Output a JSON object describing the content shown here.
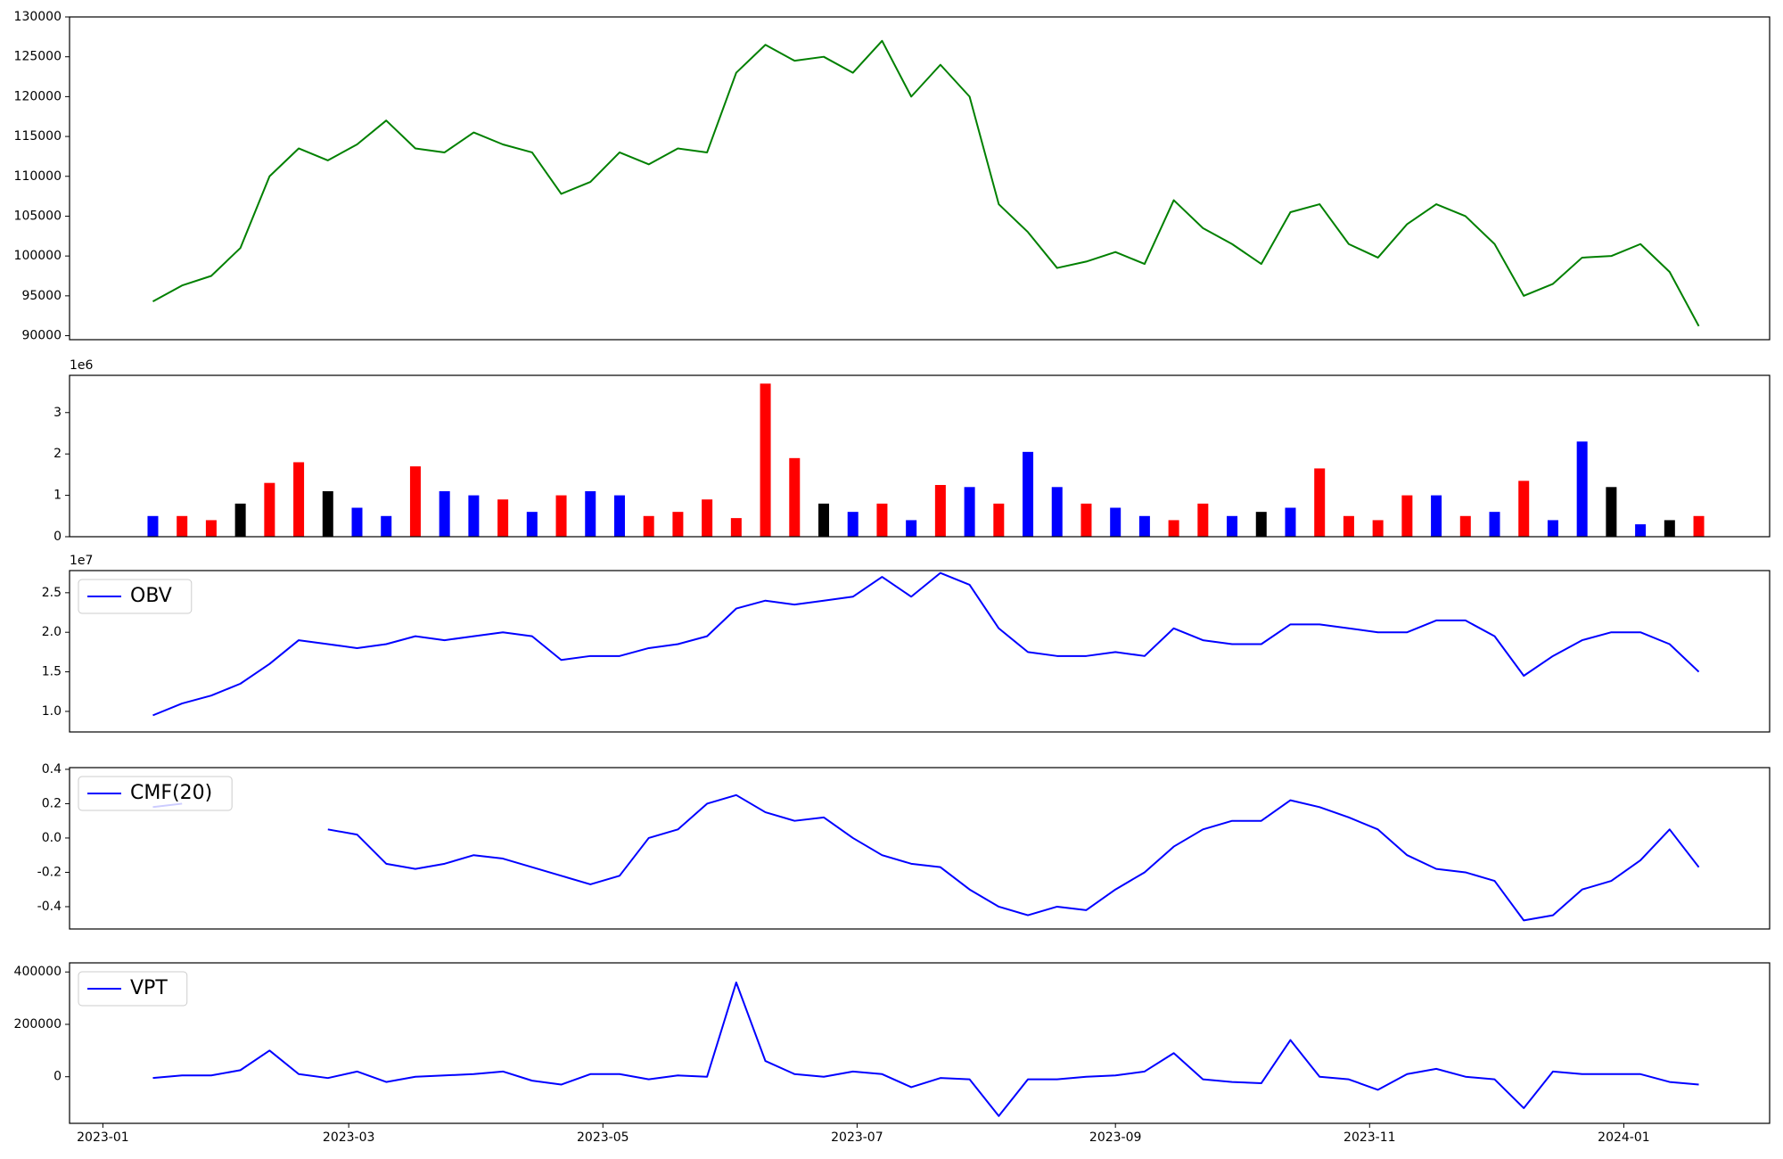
{
  "chart_data": [
    {
      "type": "line",
      "x": [
        "2023-01-13",
        "2023-01-20",
        "2023-01-27",
        "2023-02-03",
        "2023-02-10",
        "2023-02-17",
        "2023-02-24",
        "2023-03-03",
        "2023-03-10",
        "2023-03-17",
        "2023-03-24",
        "2023-03-31",
        "2023-04-07",
        "2023-04-14",
        "2023-04-21",
        "2023-04-28",
        "2023-05-05",
        "2023-05-12",
        "2023-05-19",
        "2023-05-26",
        "2023-06-02",
        "2023-06-09",
        "2023-06-16",
        "2023-06-23",
        "2023-06-30",
        "2023-07-07",
        "2023-07-14",
        "2023-07-21",
        "2023-07-28",
        "2023-08-04",
        "2023-08-11",
        "2023-08-18",
        "2023-08-25",
        "2023-09-01",
        "2023-09-08",
        "2023-09-15",
        "2023-09-22",
        "2023-09-29",
        "2023-10-06",
        "2023-10-13",
        "2023-10-20",
        "2023-10-27",
        "2023-11-03",
        "2023-11-10",
        "2023-11-17",
        "2023-11-24",
        "2023-12-01",
        "2023-12-08",
        "2023-12-15",
        "2023-12-22",
        "2023-12-29",
        "2024-01-05",
        "2024-01-12",
        "2024-01-19"
      ],
      "xlim": [
        "2022-12-24",
        "2024-02-05"
      ],
      "series": [
        {
          "color": "#008000",
          "values": [
            94300,
            96300,
            97500,
            101000,
            110000,
            113500,
            112000,
            114000,
            117000,
            113500,
            113000,
            115500,
            114000,
            113000,
            107800,
            109300,
            113000,
            111500,
            113500,
            113000,
            123000,
            126500,
            124500,
            125000,
            123000,
            127000,
            120000,
            124000,
            120000,
            106500,
            103000,
            98500,
            99300,
            100500,
            99000,
            107000,
            103500,
            101500,
            99000,
            105500,
            106500,
            101500,
            99800,
            104000,
            106500,
            105000,
            101500,
            95000,
            96500,
            99800,
            100000,
            101500,
            98000,
            91200
          ]
        }
      ],
      "ylim": [
        89500,
        130000
      ],
      "yticks": [
        90000,
        95000,
        100000,
        105000,
        110000,
        115000,
        120000,
        125000,
        130000
      ]
    },
    {
      "type": "bar",
      "x": [
        "2023-01-13",
        "2023-01-20",
        "2023-01-27",
        "2023-02-03",
        "2023-02-10",
        "2023-02-17",
        "2023-02-24",
        "2023-03-03",
        "2023-03-10",
        "2023-03-17",
        "2023-03-24",
        "2023-03-31",
        "2023-04-07",
        "2023-04-14",
        "2023-04-21",
        "2023-04-28",
        "2023-05-05",
        "2023-05-12",
        "2023-05-19",
        "2023-05-26",
        "2023-06-02",
        "2023-06-09",
        "2023-06-16",
        "2023-06-23",
        "2023-06-30",
        "2023-07-07",
        "2023-07-14",
        "2023-07-21",
        "2023-07-28",
        "2023-08-04",
        "2023-08-11",
        "2023-08-18",
        "2023-08-25",
        "2023-09-01",
        "2023-09-08",
        "2023-09-15",
        "2023-09-22",
        "2023-09-29",
        "2023-10-06",
        "2023-10-13",
        "2023-10-20",
        "2023-10-27",
        "2023-11-03",
        "2023-11-10",
        "2023-11-17",
        "2023-11-24",
        "2023-12-01",
        "2023-12-08",
        "2023-12-15",
        "2023-12-22",
        "2023-12-29",
        "2024-01-05",
        "2024-01-12",
        "2024-01-19"
      ],
      "xlim": [
        "2022-12-24",
        "2024-02-05"
      ],
      "values": [
        0.5,
        0.5,
        0.4,
        0.8,
        1.3,
        1.8,
        1.1,
        0.7,
        0.5,
        1.7,
        1.1,
        1.0,
        0.9,
        0.6,
        1.0,
        1.1,
        1.0,
        0.5,
        0.6,
        0.9,
        0.45,
        3.7,
        1.9,
        0.8,
        0.6,
        0.8,
        0.4,
        1.25,
        1.2,
        0.8,
        2.05,
        1.2,
        0.8,
        0.7,
        0.5,
        0.4,
        0.8,
        0.5,
        0.6,
        0.7,
        1.65,
        0.5,
        0.4,
        1.0,
        1.0,
        0.5,
        0.6,
        1.35,
        0.4,
        2.3,
        1.2,
        0.3,
        0.4,
        0.5
      ],
      "colors": [
        "blue",
        "red",
        "red",
        "black",
        "red",
        "red",
        "black",
        "blue",
        "blue",
        "red",
        "blue",
        "blue",
        "red",
        "blue",
        "red",
        "blue",
        "blue",
        "red",
        "red",
        "red",
        "red",
        "red",
        "red",
        "black",
        "blue",
        "red",
        "blue",
        "red",
        "blue",
        "red",
        "blue",
        "blue",
        "red",
        "blue",
        "blue",
        "red",
        "red",
        "blue",
        "black",
        "blue",
        "red",
        "red",
        "red",
        "red",
        "blue",
        "red",
        "blue",
        "red",
        "blue",
        "blue",
        "black",
        "blue",
        "black",
        "red"
      ],
      "offset_label": "1e6",
      "ylim": [
        0,
        3.9
      ],
      "yticks": [
        0,
        1,
        2,
        3
      ]
    },
    {
      "type": "line",
      "x": [
        "2023-01-13",
        "2023-01-20",
        "2023-01-27",
        "2023-02-03",
        "2023-02-10",
        "2023-02-17",
        "2023-02-24",
        "2023-03-03",
        "2023-03-10",
        "2023-03-17",
        "2023-03-24",
        "2023-03-31",
        "2023-04-07",
        "2023-04-14",
        "2023-04-21",
        "2023-04-28",
        "2023-05-05",
        "2023-05-12",
        "2023-05-19",
        "2023-05-26",
        "2023-06-02",
        "2023-06-09",
        "2023-06-16",
        "2023-06-23",
        "2023-06-30",
        "2023-07-07",
        "2023-07-14",
        "2023-07-21",
        "2023-07-28",
        "2023-08-04",
        "2023-08-11",
        "2023-08-18",
        "2023-08-25",
        "2023-09-01",
        "2023-09-08",
        "2023-09-15",
        "2023-09-22",
        "2023-09-29",
        "2023-10-06",
        "2023-10-13",
        "2023-10-20",
        "2023-10-27",
        "2023-11-03",
        "2023-11-10",
        "2023-11-17",
        "2023-11-24",
        "2023-12-01",
        "2023-12-08",
        "2023-12-15",
        "2023-12-22",
        "2023-12-29",
        "2024-01-05",
        "2024-01-12",
        "2024-01-19"
      ],
      "xlim": [
        "2022-12-24",
        "2024-02-05"
      ],
      "series": [
        {
          "name": "OBV",
          "color": "blue",
          "values": [
            0.95,
            1.1,
            1.2,
            1.35,
            1.6,
            1.9,
            1.85,
            1.8,
            1.85,
            1.95,
            1.9,
            1.95,
            2.0,
            1.95,
            1.65,
            1.7,
            1.7,
            1.8,
            1.85,
            1.95,
            2.3,
            2.4,
            2.35,
            2.4,
            2.45,
            2.7,
            2.45,
            2.75,
            2.6,
            2.05,
            1.75,
            1.7,
            1.7,
            1.75,
            1.7,
            2.05,
            1.9,
            1.85,
            1.85,
            2.1,
            2.1,
            2.05,
            2.0,
            2.0,
            2.15,
            2.15,
            1.95,
            1.45,
            1.7,
            1.9,
            2.0,
            2.0,
            1.85,
            1.5
          ]
        }
      ],
      "offset_label": "1e7",
      "legend": "upper left",
      "ylim": [
        0.74,
        2.78
      ],
      "yticks": [
        {
          "value": 1,
          "label": "1.0"
        },
        1.5,
        {
          "value": 2,
          "label": "2.0"
        },
        2.5
      ]
    },
    {
      "type": "line",
      "x": [
        "2023-01-13",
        "2023-01-20",
        "2023-01-27",
        "2023-02-03",
        "2023-02-10",
        "2023-02-17",
        "2023-02-24",
        "2023-03-03",
        "2023-03-10",
        "2023-03-17",
        "2023-03-24",
        "2023-03-31",
        "2023-04-07",
        "2023-04-14",
        "2023-04-21",
        "2023-04-28",
        "2023-05-05",
        "2023-05-12",
        "2023-05-19",
        "2023-05-26",
        "2023-06-02",
        "2023-06-09",
        "2023-06-16",
        "2023-06-23",
        "2023-06-30",
        "2023-07-07",
        "2023-07-14",
        "2023-07-21",
        "2023-07-28",
        "2023-08-04",
        "2023-08-11",
        "2023-08-18",
        "2023-08-25",
        "2023-09-01",
        "2023-09-08",
        "2023-09-15",
        "2023-09-22",
        "2023-09-29",
        "2023-10-06",
        "2023-10-13",
        "2023-10-20",
        "2023-10-27",
        "2023-11-03",
        "2023-11-10",
        "2023-11-17",
        "2023-11-24",
        "2023-12-01",
        "2023-12-08",
        "2023-12-15",
        "2023-12-22",
        "2023-12-29",
        "2024-01-05",
        "2024-01-12",
        "2024-01-19"
      ],
      "xlim": [
        "2022-12-24",
        "2024-02-05"
      ],
      "series": [
        {
          "name": "CMF(20)",
          "color": "blue",
          "values": [
            0.18,
            0.2,
            null,
            null,
            null,
            null,
            0.05,
            0.02,
            -0.15,
            -0.18,
            -0.15,
            -0.1,
            -0.12,
            -0.17,
            -0.22,
            -0.27,
            -0.22,
            0,
            0.05,
            0.2,
            0.25,
            0.15,
            0.1,
            0.12,
            0,
            -0.1,
            -0.15,
            -0.17,
            -0.3,
            -0.4,
            -0.45,
            -0.4,
            -0.42,
            -0.3,
            -0.2,
            -0.05,
            0.05,
            0.1,
            0.1,
            0.22,
            0.18,
            0.12,
            0.05,
            -0.1,
            -0.18,
            -0.2,
            -0.25,
            -0.48,
            -0.45,
            -0.3,
            -0.25,
            -0.13,
            0.05,
            -0.17
          ]
        }
      ],
      "legend": "upper left",
      "ylim": [
        -0.53,
        0.41
      ],
      "yticks": [
        -0.4,
        -0.2,
        {
          "value": 0,
          "label": "0.0"
        },
        0.2,
        0.4
      ]
    },
    {
      "type": "line",
      "x": [
        "2023-01-13",
        "2023-01-20",
        "2023-01-27",
        "2023-02-03",
        "2023-02-10",
        "2023-02-17",
        "2023-02-24",
        "2023-03-03",
        "2023-03-10",
        "2023-03-17",
        "2023-03-24",
        "2023-03-31",
        "2023-04-07",
        "2023-04-14",
        "2023-04-21",
        "2023-04-28",
        "2023-05-05",
        "2023-05-12",
        "2023-05-19",
        "2023-05-26",
        "2023-06-02",
        "2023-06-09",
        "2023-06-16",
        "2023-06-23",
        "2023-06-30",
        "2023-07-07",
        "2023-07-14",
        "2023-07-21",
        "2023-07-28",
        "2023-08-04",
        "2023-08-11",
        "2023-08-18",
        "2023-08-25",
        "2023-09-01",
        "2023-09-08",
        "2023-09-15",
        "2023-09-22",
        "2023-09-29",
        "2023-10-06",
        "2023-10-13",
        "2023-10-20",
        "2023-10-27",
        "2023-11-03",
        "2023-11-10",
        "2023-11-17",
        "2023-11-24",
        "2023-12-01",
        "2023-12-08",
        "2023-12-15",
        "2023-12-22",
        "2023-12-29",
        "2024-01-05",
        "2024-01-12",
        "2024-01-19"
      ],
      "xlim": [
        "2022-12-24",
        "2024-02-05"
      ],
      "series": [
        {
          "name": "VPT",
          "color": "blue",
          "values": [
            -5000,
            5000,
            5000,
            25000,
            100000,
            10000,
            -5000,
            20000,
            -20000,
            0,
            5000,
            10000,
            20000,
            -15000,
            -30000,
            10000,
            10000,
            -10000,
            5000,
            0,
            360000,
            60000,
            10000,
            0,
            20000,
            10000,
            -40000,
            -5000,
            -10000,
            -150000,
            -10000,
            -10000,
            0,
            5000,
            20000,
            90000,
            -10000,
            -20000,
            -25000,
            140000,
            0,
            -10000,
            -50000,
            10000,
            30000,
            0,
            -10000,
            -120000,
            20000,
            10000,
            10000,
            10000,
            -20000,
            -30000
          ]
        }
      ],
      "legend": "upper left",
      "ylim": [
        -178000,
        434800
      ],
      "yticks": [
        0,
        200000,
        400000
      ],
      "xticks": [
        {
          "value": "2023-01-01",
          "label": "2023-01"
        },
        {
          "value": "2023-03-01",
          "label": "2023-03"
        },
        {
          "value": "2023-05-01",
          "label": "2023-05"
        },
        {
          "value": "2023-07-01",
          "label": "2023-07"
        },
        {
          "value": "2023-09-01",
          "label": "2023-09"
        },
        {
          "value": "2023-11-01",
          "label": "2023-11"
        },
        {
          "value": "2024-01-01",
          "label": "2024-01"
        }
      ]
    }
  ]
}
